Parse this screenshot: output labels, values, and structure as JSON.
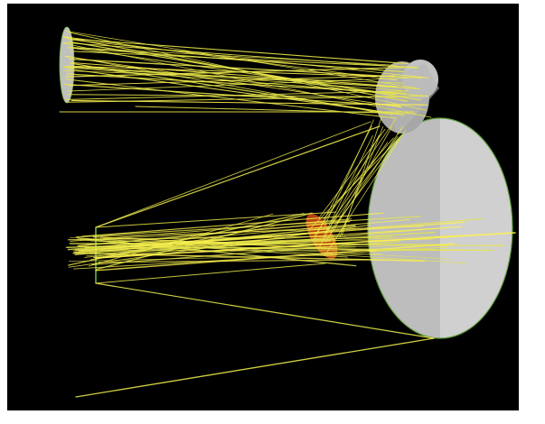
{
  "scene": {
    "type": "3d-optical-ray-trace",
    "background_color": "#000000",
    "frame_color": "#ffffff",
    "ray_color": "#e8e64a",
    "ray_color_bright": "#fff24d",
    "primary_mirror_color": "#c8c8c8",
    "secondary_mirror_color": "#b23a12",
    "rim_color": "#7fbf4a",
    "elements": [
      "entrance-aperture",
      "fold-mirror-top",
      "primary-mirror",
      "secondary-mirror",
      "focal-plane"
    ]
  }
}
